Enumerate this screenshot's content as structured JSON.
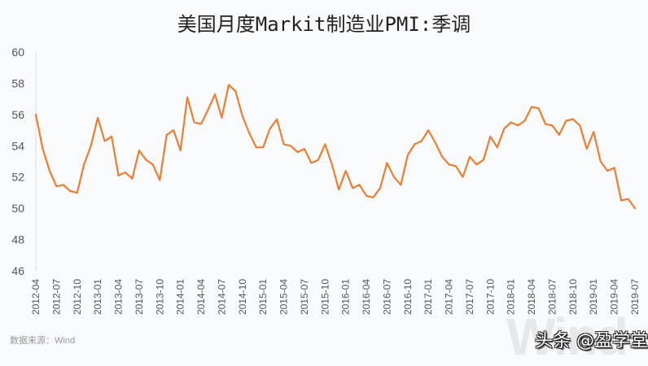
{
  "header": {
    "title": "美国月度Markit制造业PMI:季调"
  },
  "footer": {
    "source": "数据来源：Wind",
    "watermark_bg": "Wind",
    "watermark": "头条 @盈学堂"
  },
  "colors": {
    "line": "#ED7D31",
    "background": "#F9FAFC",
    "axis": "#E0E3E8",
    "text": "#555555"
  },
  "chart_data": {
    "type": "line",
    "title": "美国月度Markit制造业PMI:季调",
    "xlabel": "",
    "ylabel": "",
    "ylim": [
      46,
      60
    ],
    "yticks": [
      46,
      48,
      50,
      52,
      54,
      56,
      58,
      60
    ],
    "grid": false,
    "legend": null,
    "x_tick_labels": [
      "2012-04",
      "2012-07",
      "2012-10",
      "2013-01",
      "2013-04",
      "2013-07",
      "2013-10",
      "2014-01",
      "2014-04",
      "2014-07",
      "2014-10",
      "2015-01",
      "2015-04",
      "2015-07",
      "2015-10",
      "2016-01",
      "2016-04",
      "2016-07",
      "2016-10",
      "2017-01",
      "2017-04",
      "2017-07",
      "2017-10",
      "2018-01",
      "2018-04",
      "2018-07",
      "2018-10",
      "2019-01",
      "2019-04",
      "2019-07"
    ],
    "x": [
      "2012-04",
      "2012-05",
      "2012-06",
      "2012-07",
      "2012-08",
      "2012-09",
      "2012-10",
      "2012-11",
      "2012-12",
      "2013-01",
      "2013-02",
      "2013-03",
      "2013-04",
      "2013-05",
      "2013-06",
      "2013-07",
      "2013-08",
      "2013-09",
      "2013-10",
      "2013-11",
      "2013-12",
      "2014-01",
      "2014-02",
      "2014-03",
      "2014-04",
      "2014-05",
      "2014-06",
      "2014-07",
      "2014-08",
      "2014-09",
      "2014-10",
      "2014-11",
      "2014-12",
      "2015-01",
      "2015-02",
      "2015-03",
      "2015-04",
      "2015-05",
      "2015-06",
      "2015-07",
      "2015-08",
      "2015-09",
      "2015-10",
      "2015-11",
      "2015-12",
      "2016-01",
      "2016-02",
      "2016-03",
      "2016-04",
      "2016-05",
      "2016-06",
      "2016-07",
      "2016-08",
      "2016-09",
      "2016-10",
      "2016-11",
      "2016-12",
      "2017-01",
      "2017-02",
      "2017-03",
      "2017-04",
      "2017-05",
      "2017-06",
      "2017-07",
      "2017-08",
      "2017-09",
      "2017-10",
      "2017-11",
      "2017-12",
      "2018-01",
      "2018-02",
      "2018-03",
      "2018-04",
      "2018-05",
      "2018-06",
      "2018-07",
      "2018-08",
      "2018-09",
      "2018-10",
      "2018-11",
      "2018-12",
      "2019-01",
      "2019-02",
      "2019-03",
      "2019-04",
      "2019-05",
      "2019-06",
      "2019-07"
    ],
    "series": [
      {
        "name": "美国月度Markit制造业PMI:季调",
        "color": "#ED7D31",
        "values": [
          56.0,
          53.8,
          52.4,
          51.4,
          51.5,
          51.1,
          51.0,
          52.8,
          54.0,
          55.8,
          54.3,
          54.6,
          52.1,
          52.3,
          51.9,
          53.7,
          53.1,
          52.8,
          51.8,
          54.7,
          55.0,
          53.7,
          57.1,
          55.5,
          55.4,
          56.3,
          57.3,
          55.8,
          57.9,
          57.5,
          55.9,
          54.8,
          53.9,
          53.9,
          55.1,
          55.7,
          54.1,
          54.0,
          53.6,
          53.8,
          52.9,
          53.1,
          54.1,
          52.8,
          51.2,
          52.4,
          51.3,
          51.5,
          50.8,
          50.7,
          51.3,
          52.9,
          52.0,
          51.5,
          53.4,
          54.1,
          54.3,
          55.0,
          54.2,
          53.3,
          52.8,
          52.7,
          52.0,
          53.3,
          52.8,
          53.1,
          54.6,
          53.9,
          55.1,
          55.5,
          55.3,
          55.6,
          56.5,
          56.4,
          55.4,
          55.3,
          54.7,
          55.6,
          55.7,
          55.3,
          53.8,
          54.9,
          53.0,
          52.4,
          52.6,
          50.5,
          50.6,
          50.0
        ]
      }
    ]
  }
}
